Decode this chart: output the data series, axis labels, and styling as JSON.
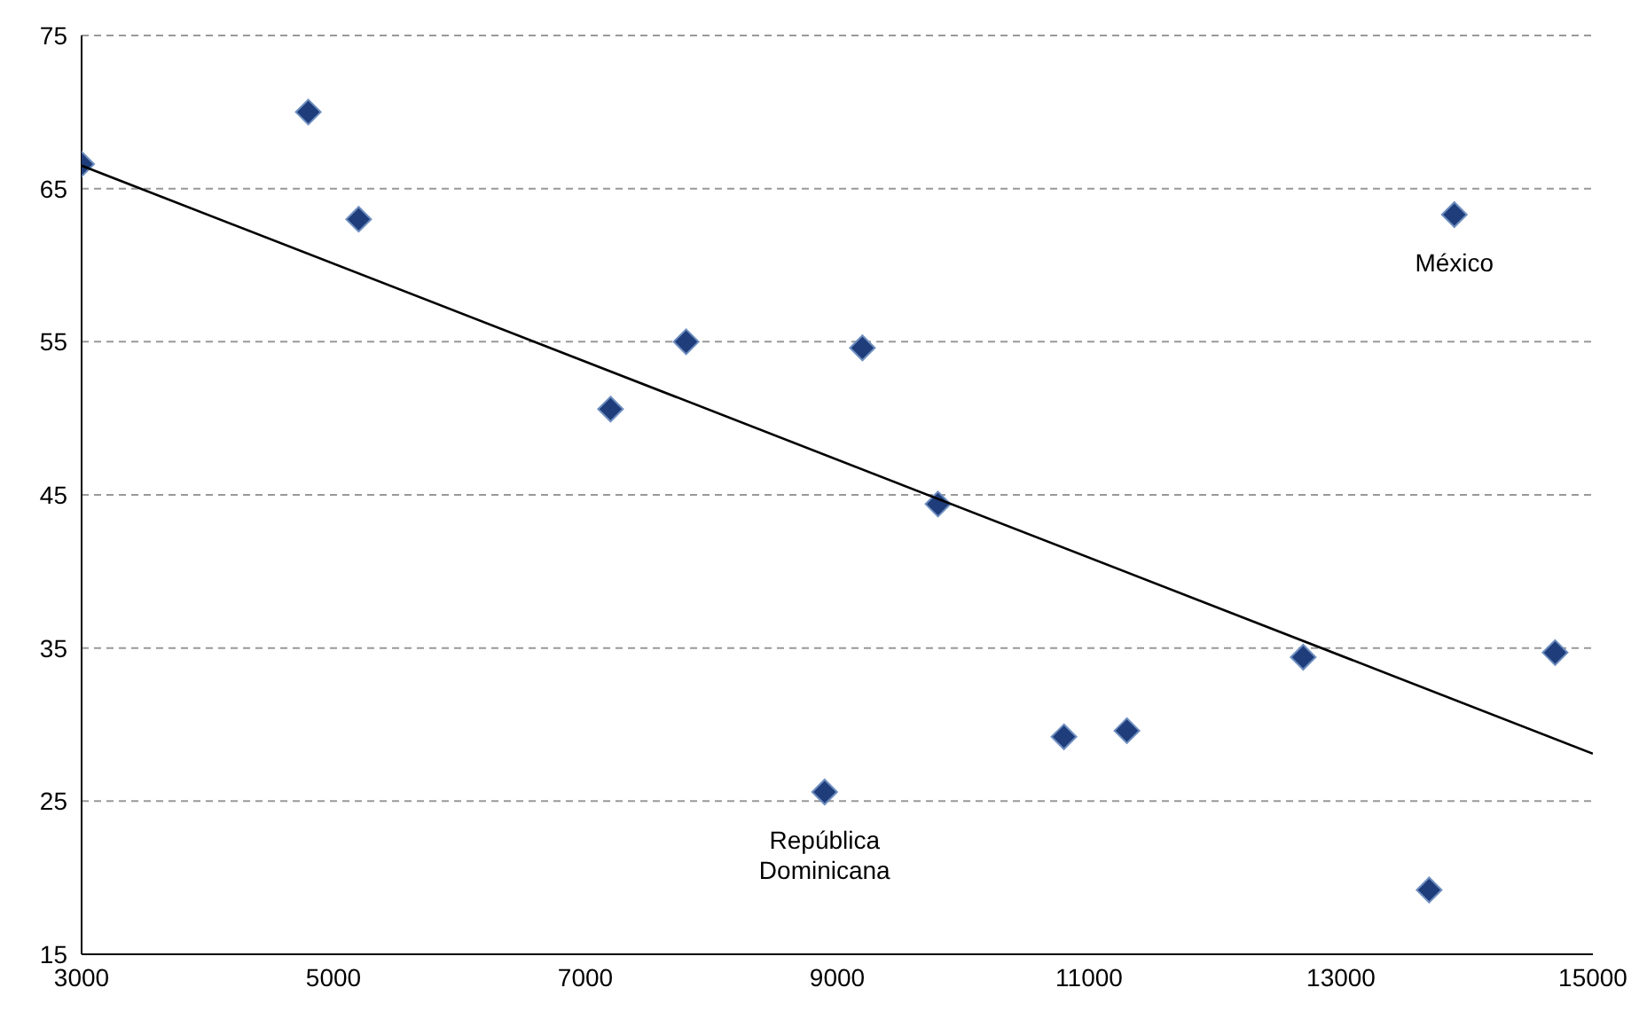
{
  "chart_data": {
    "type": "scatter",
    "xlim": [
      3000,
      15000
    ],
    "xticks": [
      3000,
      5000,
      7000,
      9000,
      11000,
      13000,
      15000
    ],
    "ylim": [
      15,
      75
    ],
    "yticks": [
      15,
      25,
      35,
      45,
      55,
      65,
      75
    ],
    "grid": "y",
    "marker": "diamond",
    "x": [
      3000,
      4800,
      5200,
      7200,
      7800,
      9200,
      9800,
      8900,
      10800,
      11300,
      12700,
      13900,
      13700,
      14700
    ],
    "series": [
      {
        "color": "#1f3d7a",
        "values": [
          66.6,
          70.0,
          63.0,
          50.6,
          55.0,
          54.6,
          44.4,
          25.6,
          29.2,
          29.6,
          34.4,
          63.3,
          19.2,
          34.7
        ]
      },
      {
        "type": "line",
        "color": "#000000",
        "x": [
          3000,
          15000
        ],
        "values": [
          66.5,
          28.1
        ],
        "marker": "none"
      }
    ],
    "annotations": [
      {
        "text": "México",
        "x": 13900,
        "y": 63.3
      },
      {
        "text": "República Dominicana",
        "x": 8900,
        "y": 25.6
      }
    ]
  }
}
